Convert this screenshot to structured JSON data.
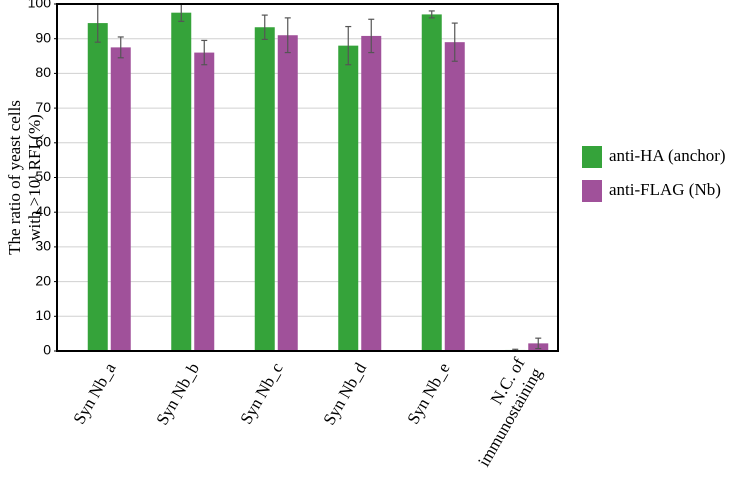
{
  "chart_data": {
    "type": "bar",
    "ylabel": [
      "The ratio of yeast cells",
      "with >10¹ RFI (%)"
    ],
    "categories": [
      "Syn Nb_a",
      "Syn Nb_b",
      "Syn Nb_c",
      "Syn Nb_d",
      "Syn Nb_e",
      "N.C. of immunostaining"
    ],
    "series": [
      {
        "name": "anti-HA (anchor)",
        "color": "#35a33a",
        "values": [
          94.5,
          97.5,
          93.3,
          88,
          97,
          0.3
        ],
        "errors": [
          5.5,
          2.5,
          3.5,
          5.5,
          1,
          0.2
        ]
      },
      {
        "name": "anti-FLAG (Nb)",
        "color": "#a0519a",
        "values": [
          87.5,
          86,
          91,
          90.8,
          89,
          2.2
        ],
        "errors": [
          3,
          3.5,
          5,
          4.8,
          5.5,
          1.5
        ]
      }
    ],
    "ylim": [
      0,
      100
    ],
    "yticks": [
      0,
      10,
      20,
      30,
      40,
      50,
      60,
      70,
      80,
      90,
      100
    ],
    "grid": true
  }
}
